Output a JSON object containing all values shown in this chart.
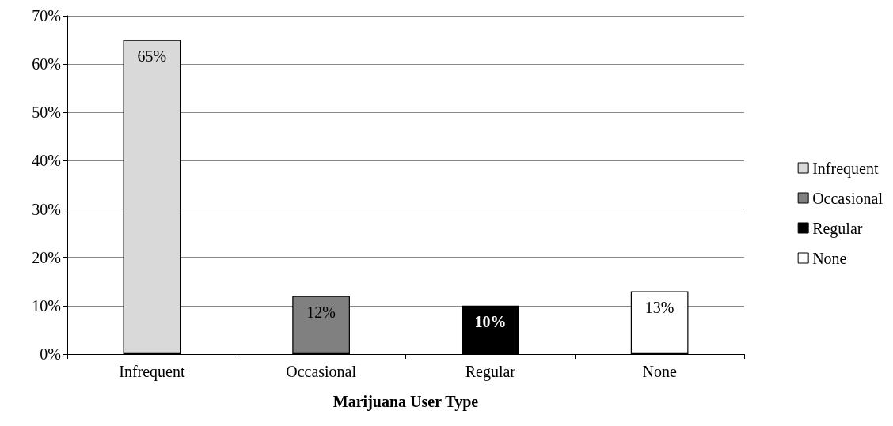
{
  "chart_data": {
    "type": "bar",
    "xlabel": "Marijuana User Type",
    "categories": [
      "Infrequent",
      "Occasional",
      "Regular",
      "None"
    ],
    "series": [
      {
        "name": "Infrequent",
        "color": "#d9d9d9",
        "values": [
          65,
          null,
          null,
          null
        ],
        "value_labels": [
          "65%",
          null,
          null,
          null
        ]
      },
      {
        "name": "Occasional",
        "color": "#808080",
        "values": [
          null,
          12,
          null,
          null
        ],
        "value_labels": [
          null,
          "12%",
          null,
          null
        ]
      },
      {
        "name": "Regular",
        "color": "#000000",
        "values": [
          null,
          null,
          10,
          null
        ],
        "value_labels": [
          null,
          null,
          "10%",
          null
        ]
      },
      {
        "name": "None",
        "color": "#ffffff",
        "values": [
          null,
          null,
          null,
          13
        ],
        "value_labels": [
          null,
          null,
          null,
          "13%"
        ]
      }
    ],
    "stacked": true,
    "ylim": [
      0,
      70
    ],
    "yticks": [
      {
        "value": 0,
        "label": "0%"
      },
      {
        "value": 10,
        "label": "10%"
      },
      {
        "value": 20,
        "label": "20%"
      },
      {
        "value": 30,
        "label": "30%"
      },
      {
        "value": 40,
        "label": "40%"
      },
      {
        "value": 50,
        "label": "50%"
      },
      {
        "value": 60,
        "label": "60%"
      },
      {
        "value": 70,
        "label": "70%"
      }
    ],
    "grid": "y",
    "legend": "right"
  }
}
